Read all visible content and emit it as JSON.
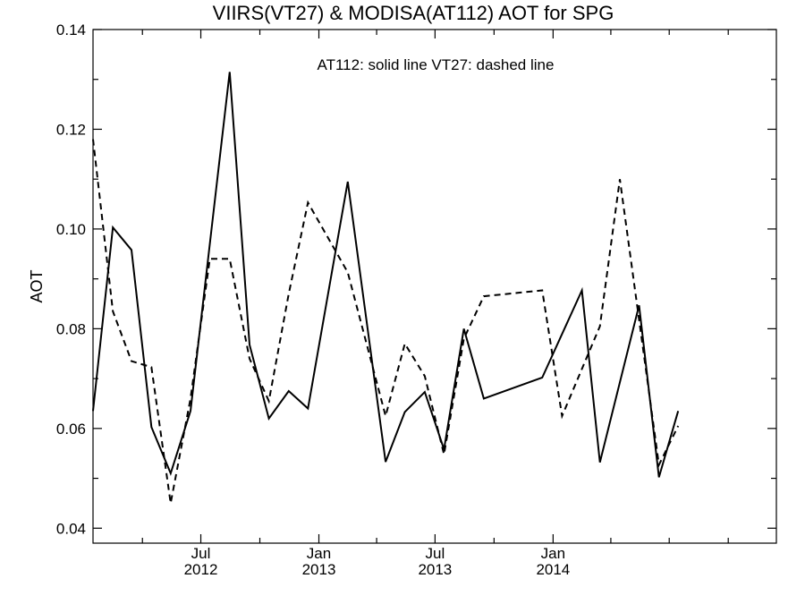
{
  "chart_data": {
    "type": "line",
    "title": "VIIRS(VT27) & MODISA(AT112)  AOT for SPG",
    "xlabel": "",
    "ylabel": "AOT",
    "annotation": "AT112: solid line   VT27: dashed line",
    "ylim": [
      0.037,
      0.14
    ],
    "xlim": [
      "2012-01-15",
      "2014-12-15"
    ],
    "yticks": [
      0.04,
      0.06,
      0.08,
      0.1,
      0.12,
      0.14
    ],
    "ytick_labels": [
      "0.04",
      "0.06",
      "0.08",
      "0.10",
      "0.12",
      "0.14"
    ],
    "xticks": [
      {
        "month": "Jul",
        "year": "2012",
        "date": "2012-07-01"
      },
      {
        "month": "Jan",
        "year": "2013",
        "date": "2013-01-01"
      },
      {
        "month": "Jul",
        "year": "2013",
        "date": "2013-07-01"
      },
      {
        "month": "Jan",
        "year": "2014",
        "date": "2014-01-01"
      }
    ],
    "x_minor_ticks": [
      "2012-04-01",
      "2012-10-01",
      "2013-04-01",
      "2013-10-01",
      "2014-04-01",
      "2014-07-01",
      "2014-10-01"
    ],
    "grid": false,
    "series": [
      {
        "name": "AT112",
        "style": "solid",
        "color": "#000000",
        "points": [
          [
            "2012-01-15",
            0.0635
          ],
          [
            "2012-02-15",
            0.1003
          ],
          [
            "2012-03-15",
            0.0958
          ],
          [
            "2012-04-15",
            0.0603
          ],
          [
            "2012-05-15",
            0.051
          ],
          [
            "2012-06-15",
            0.0635
          ],
          [
            "2012-08-15",
            0.1315
          ],
          [
            "2012-09-15",
            0.0768
          ],
          [
            "2012-10-15",
            0.062
          ],
          [
            "2012-11-15",
            0.0675
          ],
          [
            "2012-12-15",
            0.064
          ],
          [
            "2013-02-15",
            0.1095
          ],
          [
            "2013-04-15",
            0.0533
          ],
          [
            "2013-05-15",
            0.0633
          ],
          [
            "2013-06-15",
            0.0673
          ],
          [
            "2013-07-15",
            0.0558
          ],
          [
            "2013-08-15",
            0.08
          ],
          [
            "2013-09-15",
            0.066
          ],
          [
            "2013-12-15",
            0.0702
          ],
          [
            "2014-02-15",
            0.0877
          ],
          [
            "2014-03-15",
            0.0532
          ],
          [
            "2014-05-15",
            0.0847
          ],
          [
            "2014-06-15",
            0.0502
          ],
          [
            "2014-07-15",
            0.0635
          ]
        ]
      },
      {
        "name": "VT27",
        "style": "dashed",
        "color": "#000000",
        "points": [
          [
            "2012-01-15",
            0.118
          ],
          [
            "2012-02-15",
            0.0835
          ],
          [
            "2012-03-15",
            0.0735
          ],
          [
            "2012-04-15",
            0.0723
          ],
          [
            "2012-05-15",
            0.045
          ],
          [
            "2012-06-15",
            0.066
          ],
          [
            "2012-07-15",
            0.094
          ],
          [
            "2012-08-15",
            0.094
          ],
          [
            "2012-09-15",
            0.074
          ],
          [
            "2012-10-15",
            0.0655
          ],
          [
            "2012-11-15",
            0.087
          ],
          [
            "2012-12-15",
            0.1053
          ],
          [
            "2013-02-15",
            0.0913
          ],
          [
            "2013-04-15",
            0.0625
          ],
          [
            "2013-05-15",
            0.077
          ],
          [
            "2013-06-15",
            0.0705
          ],
          [
            "2013-07-15",
            0.0548
          ],
          [
            "2013-08-15",
            0.078
          ],
          [
            "2013-09-15",
            0.0865
          ],
          [
            "2013-12-15",
            0.0877
          ],
          [
            "2014-01-15",
            0.0625
          ],
          [
            "2014-03-15",
            0.0805
          ],
          [
            "2014-04-15",
            0.11
          ],
          [
            "2014-06-15",
            0.0527
          ],
          [
            "2014-07-15",
            0.0605
          ]
        ]
      }
    ]
  }
}
